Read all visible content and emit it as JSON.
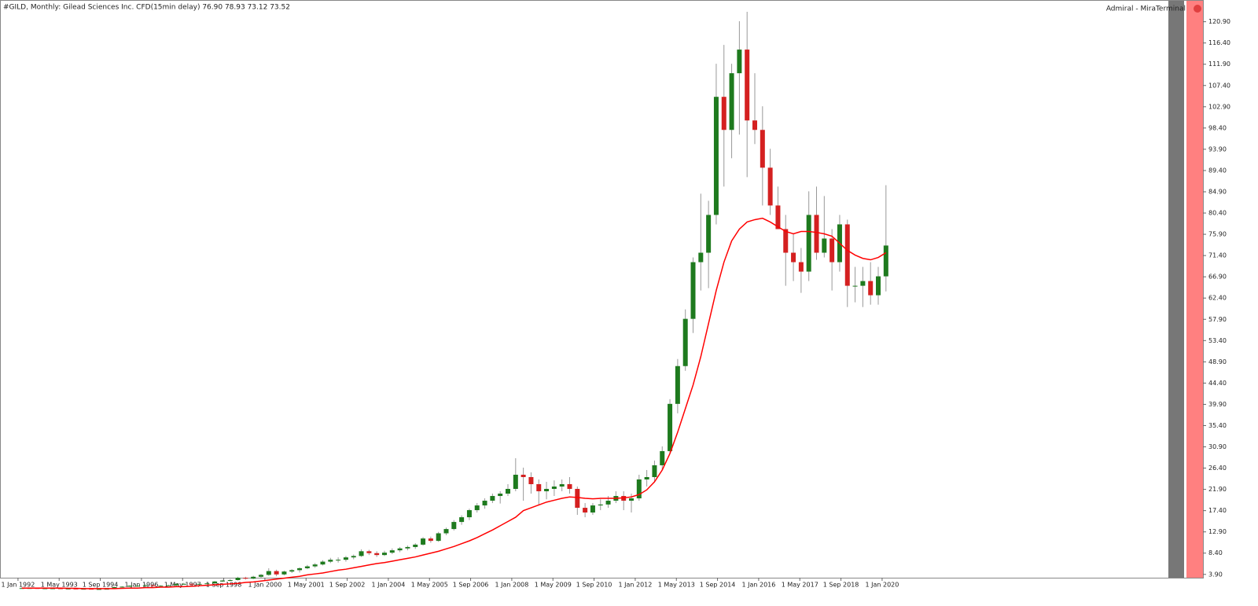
{
  "chart_data": {
    "type": "candlestick",
    "title": "#GILD, Monthly:  Gilead Sciences Inc. CFD(15min delay)  76.90 78.93 73.12 73.52",
    "subtitle": "Admiral - MiraTerminal",
    "up_color": "#1e7a1e",
    "down_color": "#d42020",
    "wick_color": "#999999",
    "xlim": [
      "1 Jun 1991",
      "1 Apr 2029"
    ],
    "ylim": [
      3.2,
      125
    ],
    "xticks": [
      "1 Jan 1992",
      "1 May 1993",
      "1 Sep 1994",
      "1 Jan 1996",
      "1 May 1997",
      "1 Sep 1998",
      "1 Jan 2000",
      "1 May 2001",
      "1 Sep 2002",
      "1 Jan 2004",
      "1 May 2005",
      "1 Sep 2006",
      "1 Jan 2008",
      "1 May 2009",
      "1 Sep 2010",
      "1 Jan 2012",
      "1 May 2013",
      "1 Sep 2014",
      "1 Jan 2016",
      "1 May 2017",
      "1 Sep 2018",
      "1 Jan 2020"
    ],
    "yticks": [
      {
        "value": 3.9,
        "label": "3.90"
      },
      {
        "value": 8.4,
        "label": "8.40"
      },
      {
        "value": 12.9,
        "label": "12.90"
      },
      {
        "value": 17.4,
        "label": "17.40"
      },
      {
        "value": 21.9,
        "label": "21.90"
      },
      {
        "value": 26.4,
        "label": "26.40"
      },
      {
        "value": 30.9,
        "label": "30.90"
      },
      {
        "value": 35.4,
        "label": "35.40"
      },
      {
        "value": 39.9,
        "label": "39.90"
      },
      {
        "value": 44.4,
        "label": "44.40"
      },
      {
        "value": 48.9,
        "label": "48.90"
      },
      {
        "value": 53.4,
        "label": "53.40"
      },
      {
        "value": 57.9,
        "label": "57.90"
      },
      {
        "value": 62.4,
        "label": "62.40"
      },
      {
        "value": 66.9,
        "label": "66.90"
      },
      {
        "value": 71.4,
        "label": "71.40"
      },
      {
        "value": 75.9,
        "label": "75.90"
      },
      {
        "value": 80.4,
        "label": "80.40"
      },
      {
        "value": 84.9,
        "label": "84.90"
      },
      {
        "value": 89.4,
        "label": "89.40"
      },
      {
        "value": 93.9,
        "label": "93.90"
      },
      {
        "value": 98.4,
        "label": "98.40"
      },
      {
        "value": 102.9,
        "label": "102.90"
      },
      {
        "value": 107.4,
        "label": "107.40"
      },
      {
        "value": 111.9,
        "label": "111.90"
      },
      {
        "value": 116.4,
        "label": "116.40"
      },
      {
        "value": 120.9,
        "label": "120.90"
      }
    ],
    "x": [
      "1 Jan 1992",
      "1 Apr 1992",
      "1 Jul 1992",
      "1 Oct 1992",
      "1 Jan 1993",
      "1 Apr 1993",
      "1 Jul 1993",
      "1 Oct 1993",
      "1 Jan 1994",
      "1 Apr 1994",
      "1 Jul 1994",
      "1 Oct 1994",
      "1 Jan 1995",
      "1 Apr 1995",
      "1 Jul 1995",
      "1 Oct 1995",
      "1 Jan 1996",
      "1 Apr 1996",
      "1 Jul 1996",
      "1 Oct 1996",
      "1 Jan 1997",
      "1 Apr 1997",
      "1 Jul 1997",
      "1 Oct 1997",
      "1 Jan 1998",
      "1 Apr 1998",
      "1 Jul 1998",
      "1 Oct 1998",
      "1 Jan 1999",
      "1 Apr 1999",
      "1 Jul 1999",
      "1 Oct 1999",
      "1 Jan 2000",
      "1 Apr 2000",
      "1 Jul 2000",
      "1 Oct 2000",
      "1 Jan 2001",
      "1 Apr 2001",
      "1 Jul 2001",
      "1 Oct 2001",
      "1 Jan 2002",
      "1 Apr 2002",
      "1 Jul 2002",
      "1 Oct 2002",
      "1 Jan 2003",
      "1 Apr 2003",
      "1 Jul 2003",
      "1 Oct 2003",
      "1 Jan 2004",
      "1 Apr 2004",
      "1 Jul 2004",
      "1 Oct 2004",
      "1 Jan 2005",
      "1 Apr 2005",
      "1 Jul 2005",
      "1 Oct 2005",
      "1 Jan 2006",
      "1 Apr 2006",
      "1 Jul 2006",
      "1 Oct 2006",
      "1 Jan 2007",
      "1 Apr 2007",
      "1 Jul 2007",
      "1 Oct 2007",
      "1 Jan 2008",
      "1 Apr 2008",
      "1 Jul 2008",
      "1 Oct 2008",
      "1 Jan 2009",
      "1 Apr 2009",
      "1 Jul 2009",
      "1 Oct 2009",
      "1 Jan 2010",
      "1 Apr 2010",
      "1 Jul 2010",
      "1 Oct 2010",
      "1 Jan 2011",
      "1 Apr 2011",
      "1 Jul 2011",
      "1 Oct 2011",
      "1 Jan 2012",
      "1 Apr 2012",
      "1 Jul 2012",
      "1 Oct 2012",
      "1 Jan 2013",
      "1 Apr 2013",
      "1 Jul 2013",
      "1 Oct 2013",
      "1 Jan 2014",
      "1 Apr 2014",
      "1 Jul 2014",
      "1 Oct 2014",
      "1 Jan 2015",
      "1 Apr 2015",
      "1 Jul 2015",
      "1 Oct 2015",
      "1 Jan 2016",
      "1 Apr 2016",
      "1 Jul 2016",
      "1 Oct 2016",
      "1 Jan 2017",
      "1 Apr 2017",
      "1 Jul 2017",
      "1 Oct 2017",
      "1 Jan 2018",
      "1 Apr 2018",
      "1 Jul 2018",
      "1 Oct 2018",
      "1 Jan 2019",
      "1 Apr 2019",
      "1 Jul 2019",
      "1 Oct 2019",
      "1 Jan 2020"
    ],
    "open": [
      1.0,
      1.0,
      1.0,
      0.95,
      0.95,
      0.95,
      0.9,
      0.9,
      0.85,
      0.85,
      0.8,
      0.8,
      0.85,
      1.2,
      1.3,
      1.5,
      1.5,
      1.6,
      1.5,
      1.5,
      1.6,
      1.9,
      1.9,
      1.8,
      1.9,
      2.0,
      2.4,
      2.6,
      2.7,
      3.2,
      3.0,
      3.4,
      3.8,
      4.6,
      3.9,
      4.5,
      4.8,
      5.2,
      5.6,
      6.0,
      6.6,
      7.0,
      7.0,
      7.5,
      7.8,
      8.8,
      8.4,
      8.0,
      8.5,
      9.0,
      9.4,
      9.7,
      10.2,
      11.5,
      11.0,
      12.6,
      13.5,
      15.0,
      16.0,
      17.5,
      18.5,
      19.5,
      20.5,
      21.0,
      22.0,
      25.0,
      24.5,
      23.0,
      21.5,
      22.0,
      22.5,
      23.0,
      22.0,
      18.0,
      17.0,
      18.5,
      18.7,
      19.5,
      20.5,
      19.5,
      20.0,
      24.0,
      24.5,
      27.0,
      30.0,
      40.0,
      48.0,
      58.0,
      70.0,
      72.0,
      80.0,
      105.0,
      98.0,
      110.0,
      115.0,
      100.0,
      98.0,
      90.0,
      82.0,
      77.0,
      72.0,
      70.0,
      68.0,
      80.0,
      72.0,
      75.0,
      70.0,
      78.0,
      65.0,
      65.0,
      66.0,
      63.0,
      67.0
    ],
    "high": [
      1.1,
      1.05,
      1.05,
      1.0,
      1.0,
      1.0,
      0.95,
      0.95,
      0.9,
      0.9,
      0.85,
      0.9,
      1.3,
      1.4,
      1.6,
      1.6,
      1.8,
      1.7,
      1.6,
      1.7,
      2.0,
      2.1,
      2.0,
      2.0,
      2.1,
      2.5,
      2.8,
      2.9,
      3.4,
      3.4,
      3.6,
      4.0,
      5.2,
      4.9,
      4.7,
      5.0,
      5.4,
      5.9,
      6.3,
      6.9,
      7.4,
      7.5,
      7.8,
      8.1,
      9.2,
      9.1,
      8.8,
      8.9,
      9.4,
      9.7,
      10.0,
      10.5,
      11.8,
      11.9,
      12.9,
      13.8,
      15.4,
      16.4,
      17.8,
      19.0,
      20.0,
      21.0,
      21.5,
      23.0,
      28.5,
      26.5,
      25.5,
      24.0,
      23.5,
      23.8,
      24.0,
      24.5,
      22.5,
      19.0,
      19.0,
      19.8,
      20.5,
      21.5,
      21.5,
      21.0,
      25.0,
      26.0,
      28.0,
      31.0,
      41.0,
      49.5,
      60.0,
      71.0,
      84.5,
      83.0,
      112.0,
      116.0,
      112.0,
      121.0,
      123.0,
      110.0,
      103.0,
      94.0,
      86.0,
      80.0,
      76.0,
      73.0,
      85.0,
      86.0,
      84.0,
      77.0,
      80.0,
      79.0,
      69.0,
      69.0,
      70.0,
      69.0,
      86.3
    ],
    "low": [
      0.95,
      0.95,
      0.9,
      0.9,
      0.9,
      0.85,
      0.85,
      0.8,
      0.8,
      0.75,
      0.75,
      0.75,
      0.85,
      1.1,
      1.25,
      1.4,
      1.45,
      1.4,
      1.35,
      1.45,
      1.55,
      1.8,
      1.7,
      1.7,
      1.85,
      1.9,
      2.3,
      2.4,
      2.6,
      2.8,
      2.9,
      3.2,
      3.6,
      3.5,
      3.7,
      4.2,
      4.3,
      5.0,
      5.3,
      5.8,
      6.3,
      6.4,
      6.6,
      7.1,
      7.6,
      8.0,
      7.6,
      7.8,
      8.2,
      8.6,
      9.0,
      9.3,
      10.0,
      10.6,
      10.8,
      12.2,
      13.2,
      14.4,
      15.4,
      17.0,
      17.8,
      19.0,
      18.9,
      20.5,
      21.5,
      19.5,
      21.0,
      18.5,
      19.8,
      20.5,
      21.5,
      21.0,
      16.5,
      16.0,
      16.5,
      17.5,
      18.0,
      19.0,
      17.5,
      17.0,
      19.5,
      22.5,
      23.5,
      26.0,
      29.5,
      38.0,
      47.0,
      55.0,
      64.0,
      64.5,
      78.0,
      86.0,
      92.0,
      97.0,
      88.0,
      95.0,
      82.0,
      80.0,
      77.0,
      65.0,
      66.0,
      63.5,
      66.0,
      70.5,
      71.0,
      64.0,
      68.0,
      60.5,
      61.5,
      60.5,
      61.0,
      61.0,
      63.8
    ],
    "close": [
      1.0,
      1.0,
      0.95,
      0.95,
      0.95,
      0.9,
      0.9,
      0.85,
      0.85,
      0.8,
      0.8,
      0.85,
      1.2,
      1.3,
      1.5,
      1.5,
      1.6,
      1.5,
      1.5,
      1.6,
      1.9,
      1.9,
      1.8,
      1.9,
      2.0,
      2.4,
      2.6,
      2.7,
      3.2,
      3.0,
      3.4,
      3.8,
      4.6,
      3.9,
      4.5,
      4.8,
      5.2,
      5.6,
      6.0,
      6.6,
      7.0,
      7.0,
      7.5,
      7.8,
      8.8,
      8.4,
      8.0,
      8.5,
      9.0,
      9.4,
      9.7,
      10.2,
      11.5,
      11.0,
      12.6,
      13.5,
      15.0,
      16.0,
      17.5,
      18.5,
      19.5,
      20.5,
      21.0,
      22.0,
      25.0,
      24.5,
      23.0,
      21.5,
      22.0,
      22.5,
      23.0,
      22.0,
      18.0,
      17.0,
      18.5,
      18.7,
      19.5,
      20.5,
      19.5,
      20.0,
      24.0,
      24.5,
      27.0,
      30.0,
      40.0,
      48.0,
      58.0,
      70.0,
      72.0,
      80.0,
      105.0,
      98.0,
      110.0,
      115.0,
      100.0,
      98.0,
      90.0,
      82.0,
      77.0,
      72.0,
      70.0,
      68.0,
      80.0,
      72.0,
      75.0,
      70.0,
      78.0,
      65.0,
      65.0,
      66.0,
      63.0,
      67.0,
      73.52
    ],
    "series": [
      {
        "color": "#ff0000",
        "values": [
          1.0,
          1.0,
          1.0,
          1.0,
          1.0,
          1.0,
          0.95,
          0.95,
          0.9,
          0.9,
          0.9,
          0.9,
          0.9,
          0.95,
          1.0,
          1.0,
          1.1,
          1.1,
          1.2,
          1.2,
          1.3,
          1.3,
          1.4,
          1.5,
          1.6,
          1.7,
          1.8,
          1.9,
          2.0,
          2.2,
          2.3,
          2.5,
          2.7,
          2.9,
          3.1,
          3.3,
          3.5,
          3.8,
          4.0,
          4.2,
          4.5,
          4.8,
          5.0,
          5.3,
          5.6,
          5.9,
          6.2,
          6.4,
          6.7,
          7.0,
          7.3,
          7.6,
          8.0,
          8.4,
          8.8,
          9.3,
          9.8,
          10.4,
          11.0,
          11.7,
          12.5,
          13.3,
          14.2,
          15.1,
          16.0,
          17.4,
          18.0,
          18.6,
          19.2,
          19.6,
          20.0,
          20.3,
          20.2,
          20.0,
          19.9,
          20.0,
          20.0,
          20.0,
          20.1,
          20.3,
          20.8,
          21.8,
          23.5,
          26.0,
          29.5,
          34.0,
          39.0,
          44.0,
          50.0,
          57.0,
          64.0,
          70.0,
          74.5,
          77.0,
          78.5,
          79.0,
          79.3,
          78.5,
          77.5,
          76.5,
          76.0,
          76.5,
          76.5,
          76.3,
          76.0,
          75.5,
          74.0,
          72.5,
          71.5,
          70.8,
          70.5,
          71.0,
          72.0
        ]
      }
    ]
  }
}
